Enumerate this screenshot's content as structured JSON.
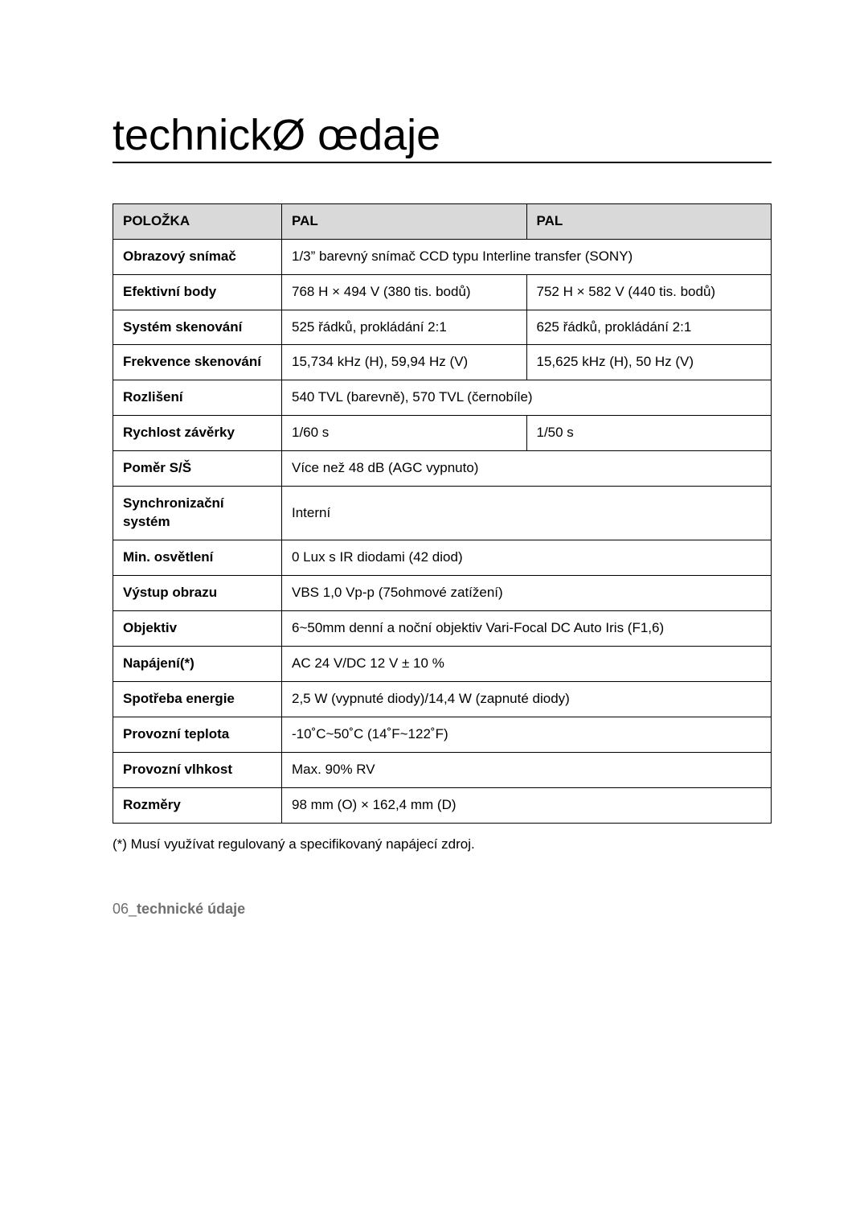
{
  "title": "technickØ œdaje",
  "table": {
    "header": {
      "c1": "POLOŽKA",
      "c2": "PAL",
      "c3": "PAL"
    },
    "rows": [
      {
        "label": "Obrazový snímač",
        "span": true,
        "v": "1/3” barevný snímač CCD typu Interline transfer (SONY)"
      },
      {
        "label": "Efektivní body",
        "v1": "768 H × 494 V (380 tis. bodů)",
        "v2": "752 H × 582 V (440 tis. bodů)"
      },
      {
        "label": "Systém skenování",
        "v1": "525 řádků, prokládání 2:1",
        "v2": "625 řádků, prokládání 2:1"
      },
      {
        "label": "Frekvence skenování",
        "v1": "15,734 kHz (H), 59,94 Hz (V)",
        "v2": "15,625 kHz (H), 50 Hz (V)"
      },
      {
        "label": "Rozlišení",
        "span": true,
        "v": "540 TVL (barevně), 570 TVL (černobíle)"
      },
      {
        "label": "Rychlost závěrky",
        "v1": "1/60 s",
        "v2": "1/50 s"
      },
      {
        "label": "Poměr S/Š",
        "span": true,
        "v": "Více než 48 dB (AGC vypnuto)"
      },
      {
        "label": "Synchronizační systém",
        "span": true,
        "v": "Interní"
      },
      {
        "label": "Min. osvětlení",
        "span": true,
        "v": "0 Lux s IR diodami (42 diod)"
      },
      {
        "label": "Výstup obrazu",
        "span": true,
        "v": "VBS 1,0 Vp-p (75ohmové zatížení)"
      },
      {
        "label": "Objektiv",
        "span": true,
        "v": "6~50mm denní a noční objektiv Vari-Focal DC Auto Iris (F1,6)"
      },
      {
        "label": "Napájení(*)",
        "span": true,
        "v": "AC 24 V/DC 12 V ± 10 %"
      },
      {
        "label": "Spotřeba energie",
        "span": true,
        "v": "2,5 W (vypnuté diody)/14,4 W (zapnuté diody)"
      },
      {
        "label": "Provozní teplota",
        "span": true,
        "v": "-10˚C~50˚C (14˚F~122˚F)"
      },
      {
        "label": "Provozní vlhkost",
        "span": true,
        "v": "Max. 90% RV"
      },
      {
        "label": "Rozměry",
        "span": true,
        "v": "98 mm (O) × 162,4 mm (D)"
      }
    ]
  },
  "footnote": "(*) Musí využívat regulovaný a specifikovaný napájecí zdroj.",
  "footer": {
    "page": "06_",
    "section": "technické údaje"
  }
}
